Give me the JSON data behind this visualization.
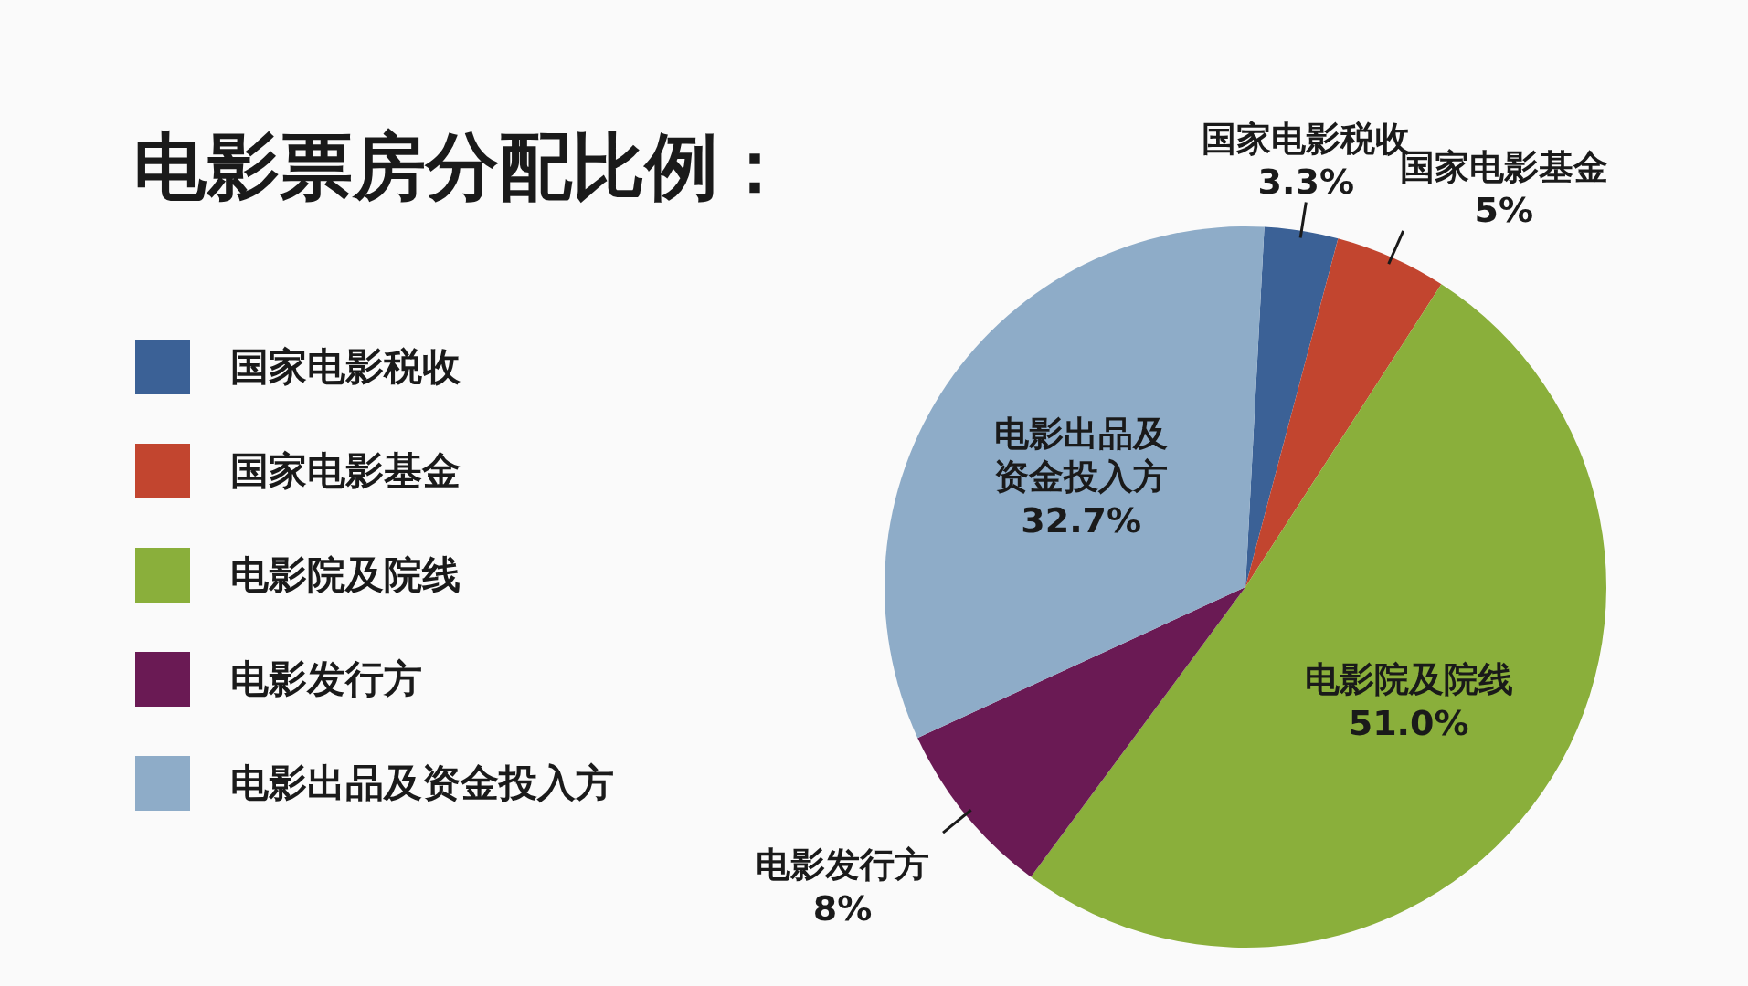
{
  "chart_data": {
    "type": "pie",
    "title": "电影票房分配比例：",
    "categories": [
      "国家电影税收",
      "国家电影基金",
      "电影院及院线",
      "电影发行方",
      "电影出品及资金投入方"
    ],
    "values": [
      3.3,
      5,
      51.0,
      8,
      32.7
    ],
    "colors": [
      "#3b6196",
      "#c2452f",
      "#8aaf3b",
      "#6a1a54",
      "#8eacc8"
    ],
    "value_labels": [
      "3.3%",
      "5%",
      "51.0%",
      "8%",
      "32.7%"
    ],
    "legend": "left"
  }
}
